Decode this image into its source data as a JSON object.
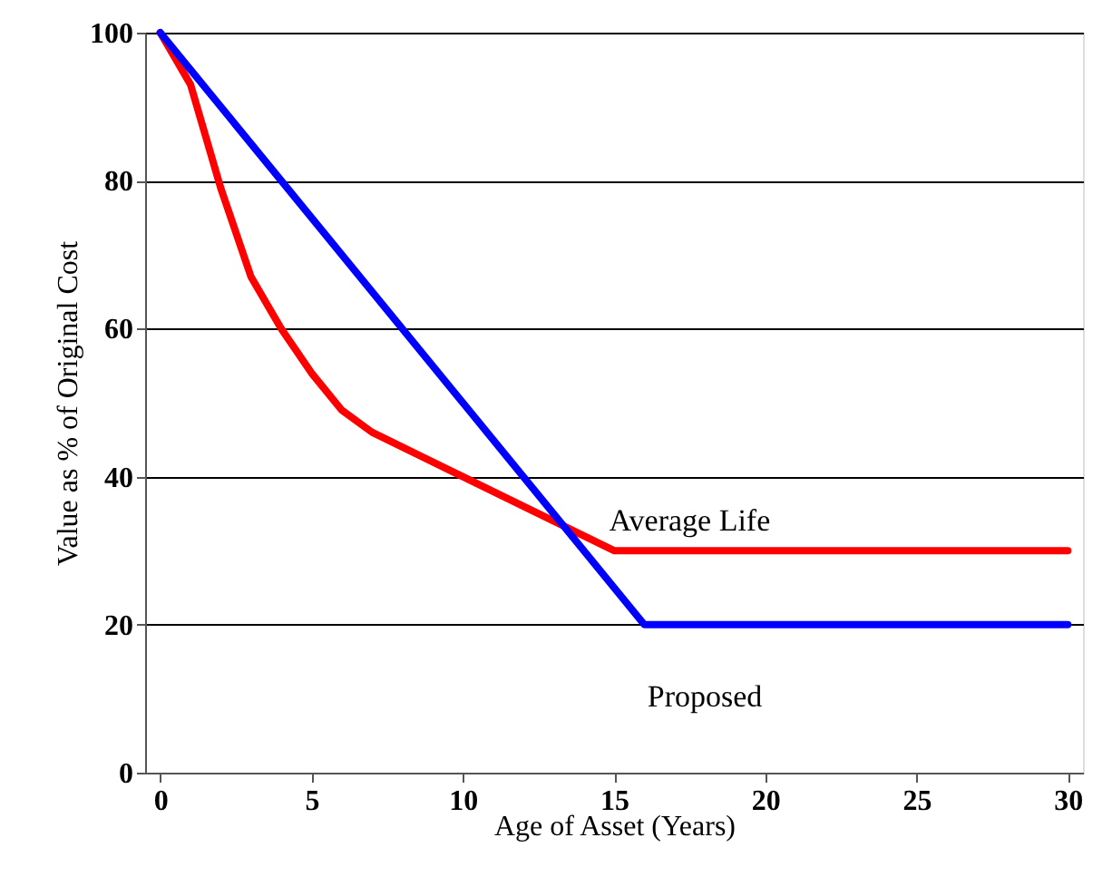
{
  "chart_data": {
    "type": "line",
    "xlabel": "Age of Asset (Years)",
    "ylabel": "Value as % of Original Cost",
    "xlim": [
      -0.5,
      30.5
    ],
    "xticks": [
      0,
      5,
      10,
      15,
      20,
      25,
      30
    ],
    "ylim": [
      0,
      100
    ],
    "yticks": [
      0,
      20,
      40,
      60,
      80,
      100
    ],
    "grid": "y",
    "legend": false,
    "line_style": "solid",
    "series": [
      {
        "name": "Average Life",
        "color": "#ff0000",
        "x": [
          0,
          1,
          2,
          3,
          4,
          5,
          6,
          7,
          15,
          30
        ],
        "values": [
          100,
          93,
          79,
          67,
          60,
          54,
          49,
          46,
          30,
          30
        ]
      },
      {
        "name": "Proposed",
        "color": "#0000ff",
        "x": [
          0,
          16,
          30
        ],
        "values": [
          100,
          20,
          20
        ]
      }
    ]
  }
}
